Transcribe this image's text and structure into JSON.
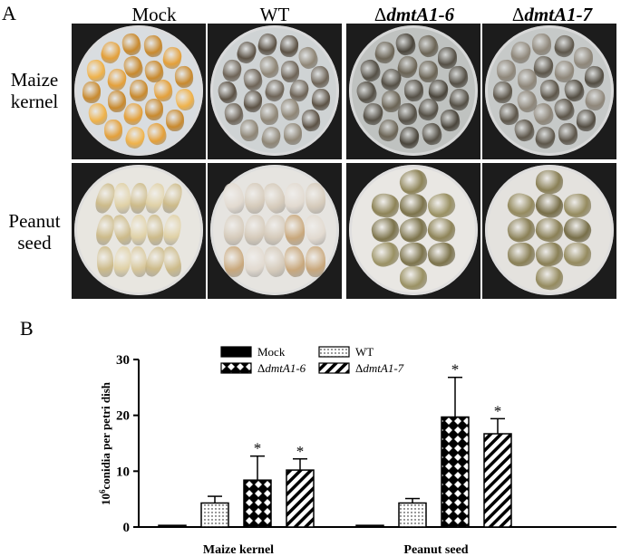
{
  "panel_a": {
    "label": "A",
    "columns": [
      "Mock",
      "WT",
      "Δ",
      "dmtA1-6",
      "Δ",
      "dmtA1-7"
    ],
    "rows": [
      [
        "Maize",
        "kernel"
      ],
      [
        "Peanut",
        "seed"
      ]
    ]
  },
  "panel_b": {
    "label": "B"
  },
  "chart_data": {
    "type": "bar",
    "categories": [
      "Maize kernel",
      "Peanut seed"
    ],
    "ylabel_base": "10",
    "ylabel_exp": "6",
    "ylabel_rest": "conidia per petri dish",
    "ylim": [
      0,
      30
    ],
    "yticks": [
      "0",
      "10",
      "20",
      "30"
    ],
    "significance_marker": "*",
    "series": [
      {
        "name": "Mock",
        "values": [
          0.3,
          0.3
        ],
        "errors": [
          0,
          0
        ],
        "significant": [
          false,
          false
        ],
        "fill": "#000000"
      },
      {
        "name": "WT",
        "values": [
          4.3,
          4.3
        ],
        "errors": [
          1.2,
          0.8
        ],
        "significant": [
          false,
          false
        ],
        "fill": "dots"
      },
      {
        "name": "ΔdmtA1-6",
        "values": [
          8.4,
          19.7
        ],
        "errors": [
          4.3,
          7.1
        ],
        "significant": [
          true,
          true
        ],
        "fill": "crosshatch"
      },
      {
        "name": "ΔdmtA1-7",
        "values": [
          10.2,
          16.7
        ],
        "errors": [
          2.0,
          2.7
        ],
        "significant": [
          true,
          true
        ],
        "fill": "diagonal"
      }
    ],
    "legend": [
      {
        "prefix": "",
        "italic": "",
        "text": "Mock",
        "fill": "#000000"
      },
      {
        "prefix": "Δ",
        "italic": "dmtA1-6",
        "text": "",
        "fill": "crosshatch"
      },
      {
        "prefix": "",
        "italic": "",
        "text": "WT",
        "fill": "dots"
      },
      {
        "prefix": "Δ",
        "italic": "dmtA1-7",
        "text": "",
        "fill": "diagonal"
      }
    ],
    "legend_placement": "top-center",
    "grid": false
  }
}
